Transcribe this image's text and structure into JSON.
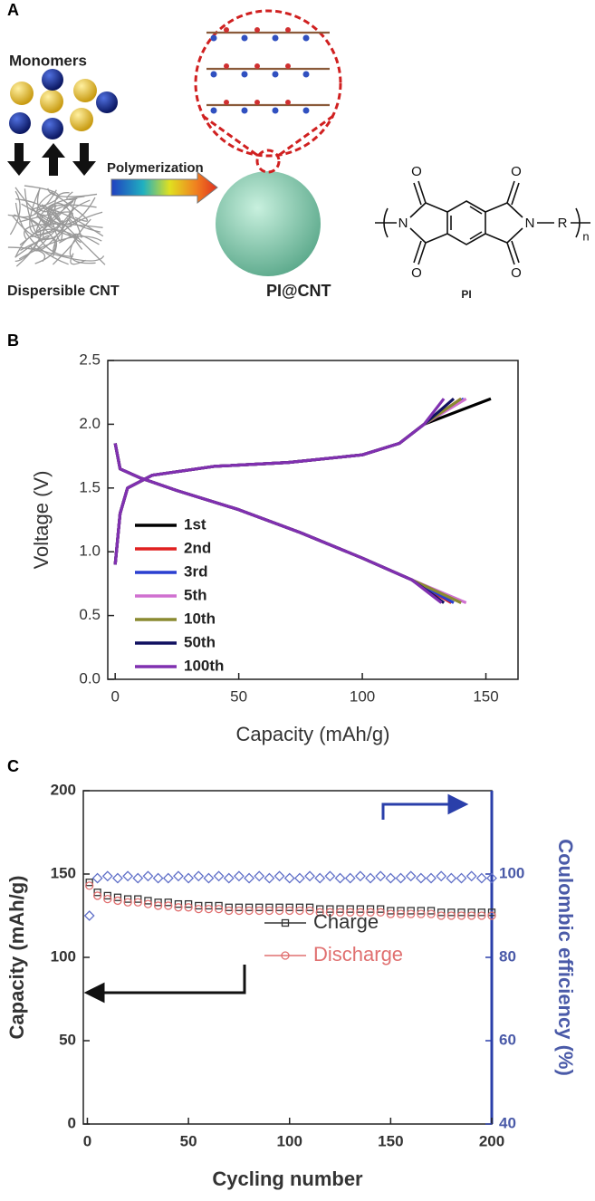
{
  "panel_labels": [
    "A",
    "B",
    "C"
  ],
  "diagram": {
    "monomers": "Monomers",
    "polymerization": "Polymerization",
    "cnt": "Dispersible CNT",
    "composite": "PI@CNT",
    "polymer": "PI",
    "atoms": [
      "O",
      "O",
      "O",
      "O",
      "N",
      "N",
      "R",
      "n"
    ]
  },
  "chart_data": [
    {
      "type": "line",
      "xlabel": "Capacity (mAh/g)",
      "ylabel": "Voltage (V)",
      "xlim": [
        -3,
        163
      ],
      "ylim": [
        0,
        2.5
      ],
      "xticks": [
        0,
        50,
        100,
        150
      ],
      "yticks": [
        {
          "value": 0,
          "label": "0.0"
        },
        0.5,
        {
          "value": 1,
          "label": "1.0"
        },
        1.5,
        {
          "value": 2,
          "label": "2.0"
        },
        2.5
      ],
      "legend": "lower left",
      "series": [
        {
          "name": "1st",
          "color": "#000000",
          "x": [
            0,
            2,
            10,
            25,
            50,
            75,
            100,
            120,
            133,
            null,
            0,
            2,
            5,
            15,
            40,
            70,
            100,
            115,
            125,
            152
          ],
          "values": [
            1.85,
            1.65,
            1.58,
            1.48,
            1.33,
            1.15,
            0.95,
            0.78,
            0.6,
            null,
            0.9,
            1.3,
            1.5,
            1.6,
            1.67,
            1.7,
            1.76,
            1.85,
            2.0,
            2.2
          ]
        },
        {
          "name": "2nd",
          "color": "#e02020",
          "x": [
            0,
            2,
            10,
            25,
            50,
            75,
            100,
            120,
            136,
            null,
            0,
            2,
            5,
            15,
            40,
            70,
            100,
            115,
            125,
            140
          ],
          "values": [
            1.85,
            1.65,
            1.58,
            1.48,
            1.33,
            1.15,
            0.95,
            0.78,
            0.6,
            null,
            0.9,
            1.3,
            1.5,
            1.6,
            1.67,
            1.7,
            1.76,
            1.85,
            2.0,
            2.2
          ]
        },
        {
          "name": "3rd",
          "color": "#2a3fd0",
          "x": [
            0,
            2,
            10,
            25,
            50,
            75,
            100,
            120,
            137,
            null,
            0,
            2,
            5,
            15,
            40,
            70,
            100,
            115,
            125,
            141
          ],
          "values": [
            1.85,
            1.65,
            1.58,
            1.48,
            1.33,
            1.15,
            0.95,
            0.78,
            0.6,
            null,
            0.9,
            1.3,
            1.5,
            1.6,
            1.67,
            1.7,
            1.76,
            1.85,
            2.0,
            2.2
          ]
        },
        {
          "name": "5th",
          "color": "#d070d0",
          "x": [
            0,
            2,
            10,
            25,
            50,
            75,
            100,
            120,
            142,
            null,
            0,
            2,
            5,
            15,
            40,
            70,
            100,
            115,
            125,
            142
          ],
          "values": [
            1.85,
            1.65,
            1.58,
            1.48,
            1.33,
            1.15,
            0.95,
            0.78,
            0.6,
            null,
            0.9,
            1.3,
            1.5,
            1.6,
            1.67,
            1.7,
            1.76,
            1.85,
            2.0,
            2.2
          ]
        },
        {
          "name": "10th",
          "color": "#8a8a30",
          "x": [
            0,
            2,
            10,
            25,
            50,
            75,
            100,
            120,
            140,
            null,
            0,
            2,
            5,
            15,
            40,
            70,
            100,
            115,
            125,
            140
          ],
          "values": [
            1.85,
            1.65,
            1.58,
            1.48,
            1.33,
            1.15,
            0.95,
            0.78,
            0.6,
            null,
            0.9,
            1.3,
            1.5,
            1.6,
            1.67,
            1.7,
            1.76,
            1.85,
            2.0,
            2.2
          ]
        },
        {
          "name": "50th",
          "color": "#101060",
          "x": [
            0,
            2,
            10,
            25,
            50,
            75,
            100,
            120,
            133,
            null,
            0,
            2,
            5,
            15,
            40,
            70,
            100,
            115,
            125,
            137
          ],
          "values": [
            1.85,
            1.65,
            1.58,
            1.48,
            1.33,
            1.15,
            0.95,
            0.78,
            0.6,
            null,
            0.9,
            1.3,
            1.5,
            1.6,
            1.67,
            1.7,
            1.76,
            1.85,
            2.0,
            2.2
          ]
        },
        {
          "name": "100th",
          "color": "#8030b0",
          "x": [
            0,
            2,
            10,
            25,
            50,
            75,
            100,
            120,
            132,
            null,
            0,
            2,
            5,
            15,
            40,
            70,
            100,
            115,
            125,
            133
          ],
          "values": [
            1.85,
            1.65,
            1.58,
            1.48,
            1.33,
            1.15,
            0.95,
            0.78,
            0.6,
            null,
            0.9,
            1.3,
            1.5,
            1.6,
            1.67,
            1.7,
            1.76,
            1.85,
            2.0,
            2.2
          ]
        }
      ]
    },
    {
      "type": "scatter",
      "xlabel": "Cycling number",
      "ylabel": "Capacity (mAh/g)",
      "y2label": "Coulombic efficiency (%)",
      "xlim": [
        -2,
        200
      ],
      "ylim": [
        0,
        200
      ],
      "y2lim": [
        40,
        120
      ],
      "xticks": [
        0,
        50,
        100,
        150,
        200
      ],
      "yticks": [
        0,
        50,
        100,
        150,
        200
      ],
      "y2ticks": [
        40,
        60,
        80,
        100
      ],
      "legend": "lower right",
      "x": [
        1,
        5,
        10,
        15,
        20,
        25,
        30,
        35,
        40,
        45,
        50,
        55,
        60,
        65,
        70,
        75,
        80,
        85,
        90,
        95,
        100,
        105,
        110,
        115,
        120,
        125,
        130,
        135,
        140,
        145,
        150,
        155,
        160,
        165,
        170,
        175,
        180,
        185,
        190,
        195,
        200
      ],
      "series": [
        {
          "name": "Charge",
          "color": "#333333",
          "marker": "square",
          "values": [
            145,
            139,
            137,
            136,
            135,
            135,
            134,
            133,
            133,
            132,
            132,
            131,
            131,
            131,
            130,
            130,
            130,
            130,
            130,
            130,
            130,
            130,
            130,
            129,
            129,
            129,
            129,
            129,
            129,
            129,
            128,
            128,
            128,
            128,
            128,
            127,
            127,
            127,
            127,
            127,
            127
          ]
        },
        {
          "name": "Discharge",
          "color": "#e07070",
          "marker": "circle",
          "values": [
            143,
            137,
            135,
            134,
            133,
            133,
            132,
            131,
            131,
            130,
            130,
            129,
            129,
            129,
            128,
            128,
            128,
            128,
            128,
            128,
            128,
            128,
            128,
            127,
            127,
            127,
            127,
            127,
            127,
            127,
            126,
            126,
            126,
            126,
            126,
            125,
            125,
            125,
            125,
            125,
            125
          ]
        },
        {
          "color": "#6070c8",
          "marker": "diamond",
          "axis": "y2",
          "values": [
            90,
            99,
            99.5,
            99,
            99.5,
            99,
            99.5,
            99,
            99,
            99.5,
            99,
            99.5,
            99,
            99.5,
            99,
            99.5,
            99,
            99.5,
            99,
            99.5,
            99,
            99,
            99.5,
            99,
            99.5,
            99,
            99,
            99.5,
            99,
            99.5,
            99,
            99,
            99.5,
            99,
            99,
            99.5,
            99,
            99,
            99.5,
            99,
            99
          ]
        }
      ]
    }
  ]
}
